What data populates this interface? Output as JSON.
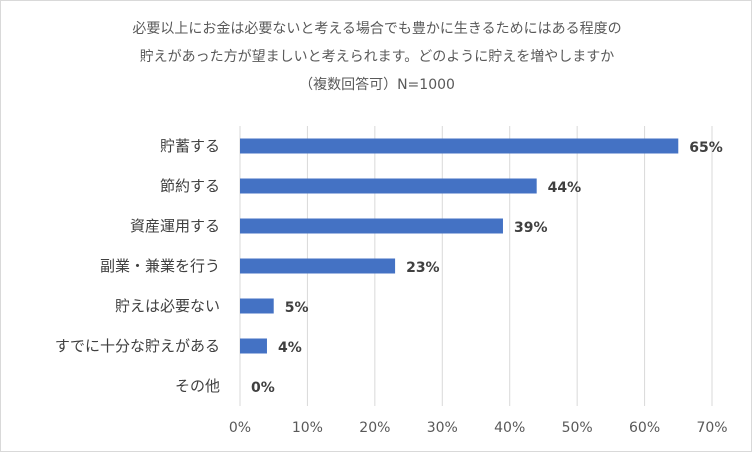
{
  "chart_data": {
    "type": "bar",
    "orientation": "horizontal",
    "title_lines": [
      "必要以上にお金は必要ないと考える場合でも豊かに生きるためにはある程度の",
      "貯えがあった方が望ましいと考えられます。どのように貯えを増やしますか",
      "（複数回答可）N=1000"
    ],
    "categories": [
      "貯蓄する",
      "節約する",
      "資産運用する",
      "副業・兼業を行う",
      "貯えは必要ない",
      "すでに十分な貯えがある",
      "その他"
    ],
    "values": [
      65,
      44,
      39,
      23,
      5,
      4,
      0
    ],
    "value_labels": [
      "65%",
      "44%",
      "39%",
      "23%",
      "5%",
      "4%",
      "0%"
    ],
    "x_ticks": [
      "0%",
      "10%",
      "20%",
      "30%",
      "40%",
      "50%",
      "60%",
      "70%"
    ],
    "xlim": [
      0,
      70
    ],
    "grid": true,
    "bar_color": "#4472C4",
    "grid_color": "#d9d9d9"
  }
}
